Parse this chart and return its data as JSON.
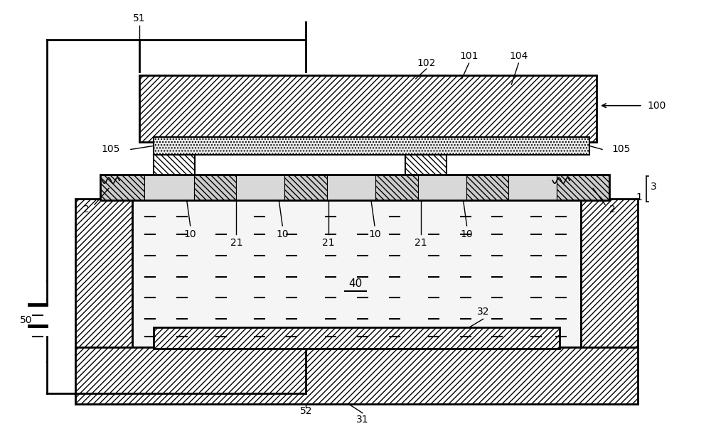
{
  "bg_color": "#ffffff",
  "lc": "#000000",
  "fig_width": 10.0,
  "fig_height": 6.07,
  "dpi": 100,
  "fs": 10
}
